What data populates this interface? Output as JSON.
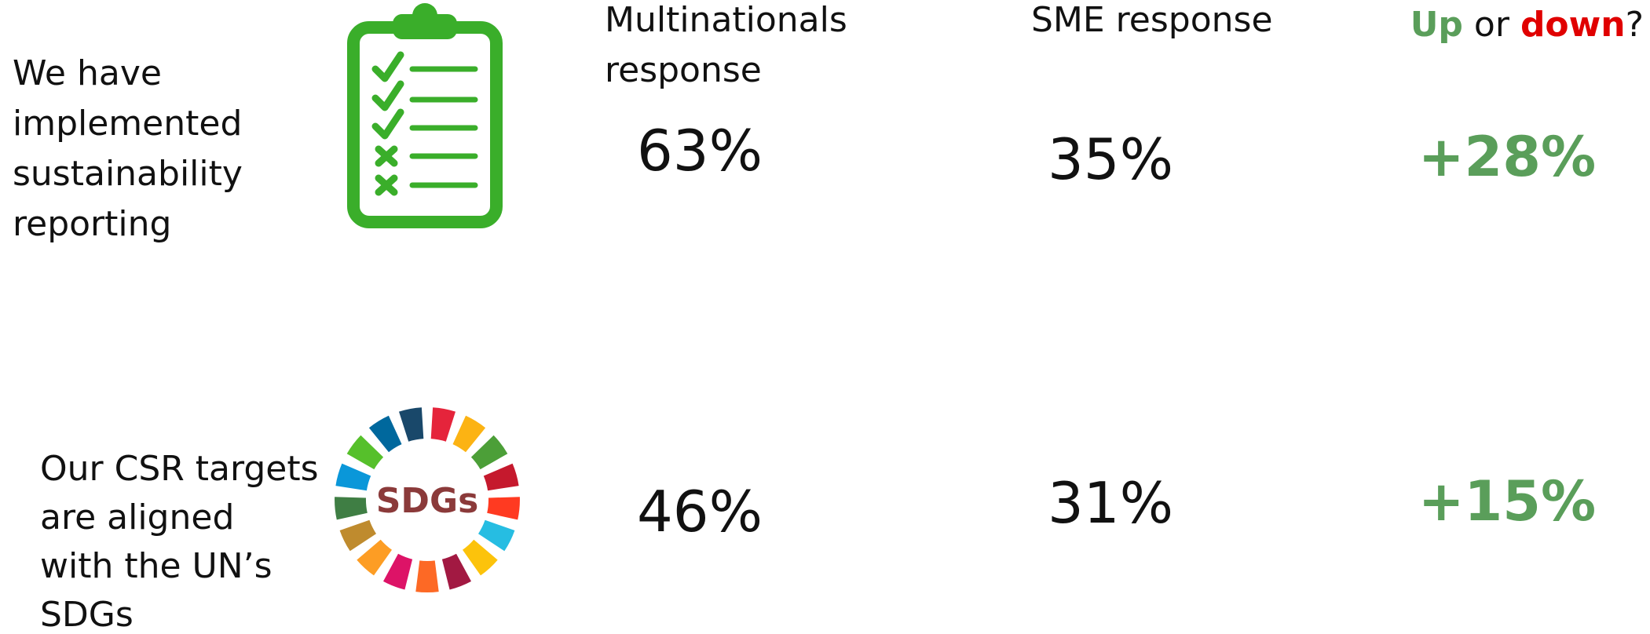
{
  "header": {
    "multinationals": [
      "Multinationals",
      "response"
    ],
    "sme": "SME response",
    "change": {
      "up": "Up",
      "or": "or",
      "down": "down",
      "end": "?"
    }
  },
  "rows": [
    {
      "label": [
        "We have",
        "implemented",
        "sustainability",
        "reporting"
      ],
      "multinationals": "63%",
      "sme": "35%",
      "change": "+28%"
    },
    {
      "label": [
        "Our CSR targets",
        "are aligned",
        "with the UN’s",
        "SDGs"
      ],
      "icon_text": "SDGs",
      "multinationals": "46%",
      "sme": "31%",
      "change": "+15%"
    }
  ]
}
